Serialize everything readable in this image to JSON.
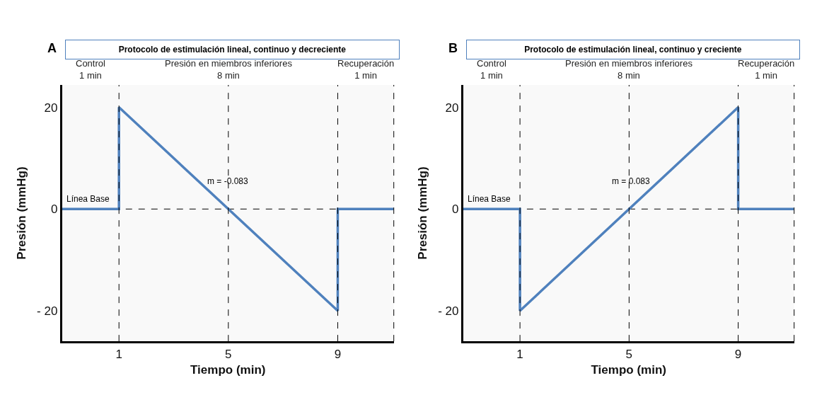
{
  "chart_data": [
    {
      "type": "line",
      "title": "Protocolo de estimulación lineal, continuo y decreciente",
      "xlabel": "Tiempo (min)",
      "ylabel": "Presión (mmHg)",
      "x": [
        -1.08,
        1,
        1,
        9,
        9,
        11.05
      ],
      "series": [
        {
          "color": "#4f81bd",
          "values": [
            0,
            0,
            20,
            -20,
            0,
            0
          ]
        }
      ],
      "xlim": [
        -1.08,
        11.05
      ],
      "ylim": [
        -26,
        24.4
      ],
      "xticks": [
        1,
        5,
        9
      ],
      "yticks": [
        {
          "value": -20,
          "label": "- 20"
        },
        0,
        20
      ],
      "grid": false,
      "line_style": "solid",
      "marker": "none",
      "ref_lines": [
        {
          "axis": "x",
          "value": 1,
          "line_style": "dashed",
          "color": "#000000"
        },
        {
          "axis": "x",
          "value": 5,
          "line_style": "dashed",
          "color": "#000000"
        },
        {
          "axis": "x",
          "value": 9,
          "line_style": "dashed",
          "color": "#000000"
        },
        {
          "axis": "y",
          "value": 0,
          "line_style": "dashed",
          "color": "#000000"
        }
      ],
      "annotations": [
        "A",
        "Control\n1 min",
        "Presión en miembros inferiores\n8 min",
        "Recuperación\n1 min",
        {
          "text": "Línea Base",
          "x": -0.97,
          "y": 0.7
        },
        {
          "text": "m = -0.083",
          "x": 3.96,
          "y": 4.16
        }
      ]
    },
    {
      "type": "line",
      "title": "Protocolo de estimulación lineal, continuo y creciente",
      "xlabel": "Tiempo (min)",
      "ylabel": "Presión (mmHg)",
      "x": [
        -1.08,
        1,
        1,
        9,
        9,
        11.05
      ],
      "series": [
        {
          "color": "#4f81bd",
          "values": [
            0,
            0,
            -20,
            20,
            0,
            0
          ]
        }
      ],
      "xlim": [
        -1.08,
        11.05
      ],
      "ylim": [
        -26,
        24.4
      ],
      "xticks": [
        1,
        5,
        9
      ],
      "yticks": [
        {
          "value": -20,
          "label": "- 20"
        },
        0,
        20
      ],
      "grid": false,
      "line_style": "solid",
      "marker": "none",
      "ref_lines": [
        {
          "axis": "x",
          "value": 1,
          "line_style": "dashed",
          "color": "#000000"
        },
        {
          "axis": "x",
          "value": 5,
          "line_style": "dashed",
          "color": "#000000"
        },
        {
          "axis": "x",
          "value": 9,
          "line_style": "dashed",
          "color": "#000000"
        },
        {
          "axis": "y",
          "value": 0,
          "line_style": "dashed",
          "color": "#000000"
        }
      ],
      "annotations": [
        "B",
        "Control\n1 min",
        "Presión en miembros inferiores\n8 min",
        "Recuperación\n1 min",
        {
          "text": "Línea Base",
          "x": -0.97,
          "y": 0.7
        },
        {
          "text": "m = 0.083",
          "x": 6.04,
          "y": 4.16
        }
      ]
    }
  ]
}
